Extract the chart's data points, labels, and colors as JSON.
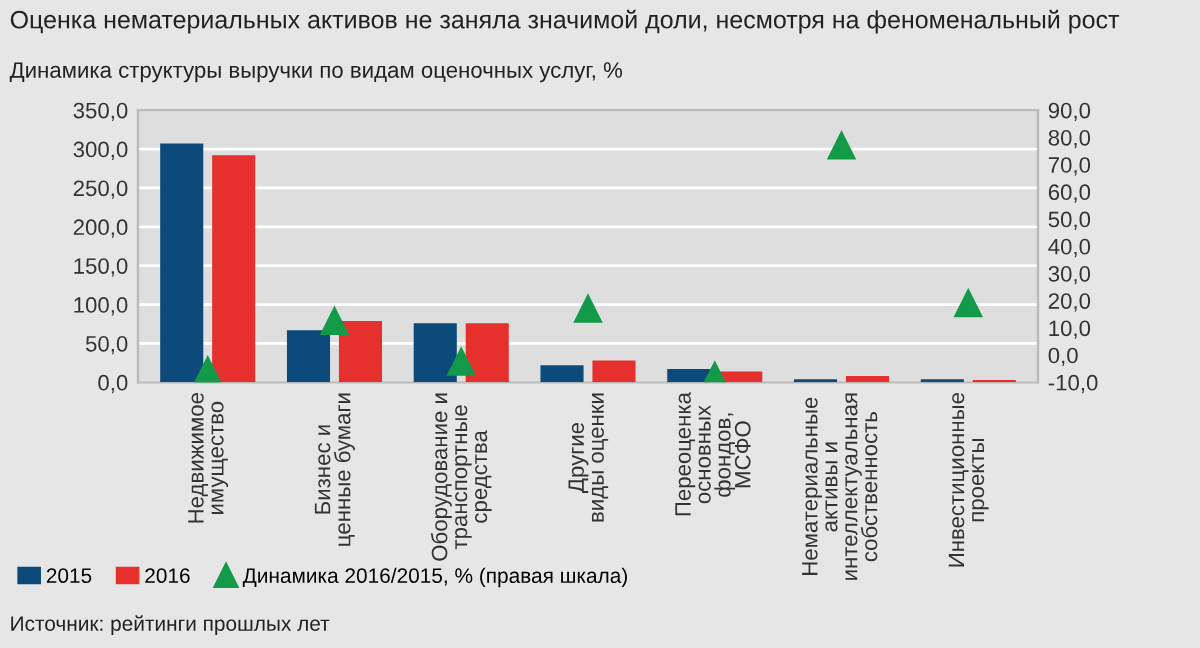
{
  "chart_data": {
    "type": "bar",
    "title": "Оценка нематериальных активов не заняла значимой доли, несмотря на феноменальный рост",
    "subtitle": "Динамика структуры выручки по видам оценочных услуг, %",
    "categories": [
      "Недвижимое\nимущество",
      "Бизнес и\nценные бумаги",
      "Оборудование и\nтранспортные\nсредства",
      "Другие\nвиды оценки",
      "Переоценка\nосновных\nфондов,\nМСФО",
      "Нематериальные\nактивы и\nинтеллектуальная\nсобственность",
      "Инвестиционные\nпроекты"
    ],
    "series": [
      {
        "name": "2015",
        "color": "#0b4a7a",
        "values": [
          307,
          67,
          76,
          22,
          17,
          4,
          4
        ]
      },
      {
        "name": "2016",
        "color": "#e5302d",
        "values": [
          292,
          79,
          76,
          28,
          14,
          8,
          3
        ]
      },
      {
        "name": "Динамика 2016/2015, % (правая шкала)",
        "type": "scatter",
        "axis": "y2",
        "marker": "triangle",
        "color": "#129a48",
        "values": [
          -5.7,
          12.5,
          -2.5,
          17,
          -7.6,
          77,
          19
        ]
      }
    ],
    "ylim": [
      0,
      350
    ],
    "yticks": [
      {
        "value": 0,
        "label": "0,0"
      },
      {
        "value": 50,
        "label": "50,0"
      },
      {
        "value": 100,
        "label": "100,0"
      },
      {
        "value": 150,
        "label": "150,0"
      },
      {
        "value": 200,
        "label": "200,0"
      },
      {
        "value": 250,
        "label": "250,0"
      },
      {
        "value": 300,
        "label": "300,0"
      },
      {
        "value": 350,
        "label": "350,0"
      }
    ],
    "y2lim": [
      -10,
      90
    ],
    "y2ticks": [
      {
        "value": -10,
        "label": "-10,0"
      },
      {
        "value": 0,
        "label": "0,0"
      },
      {
        "value": 10,
        "label": "10,0"
      },
      {
        "value": 20,
        "label": "20,0"
      },
      {
        "value": 30,
        "label": "30,0"
      },
      {
        "value": 40,
        "label": "40,0"
      },
      {
        "value": 50,
        "label": "50,0"
      },
      {
        "value": 60,
        "label": "60,0"
      },
      {
        "value": 70,
        "label": "70,0"
      },
      {
        "value": 80,
        "label": "80,0"
      },
      {
        "value": 90,
        "label": "90,0"
      }
    ],
    "grid": "y",
    "legend": "bottom",
    "annotations": [
      "Источник: рейтинги прошлых лет"
    ]
  }
}
